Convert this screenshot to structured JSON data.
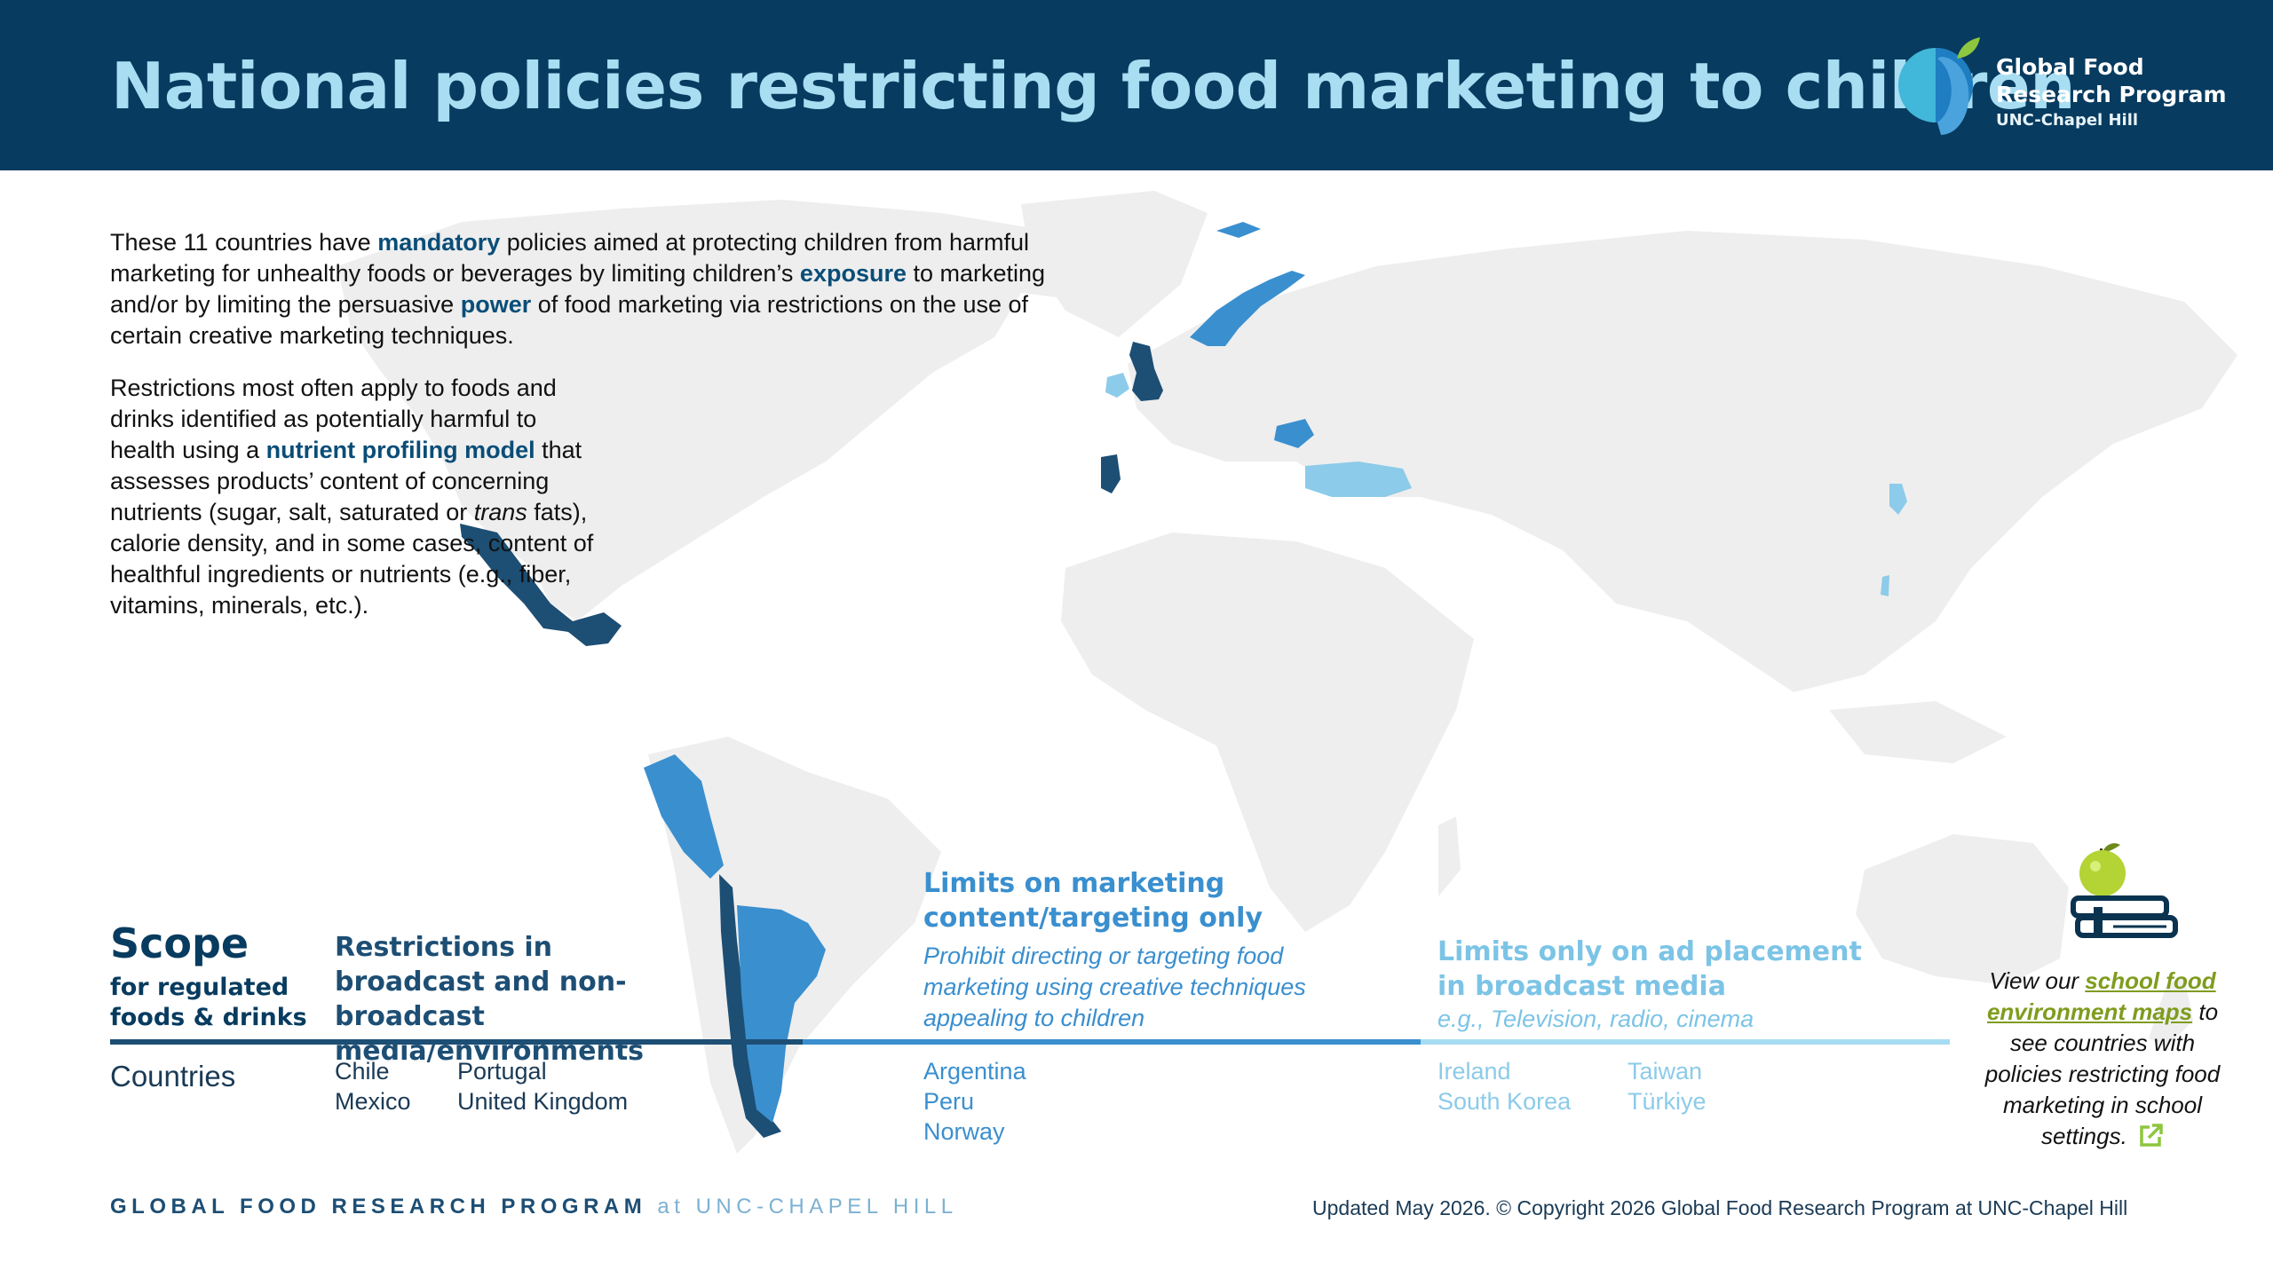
{
  "header": {
    "title": "National policies restricting food marketing to children",
    "logo": {
      "line1": "Global Food",
      "line2": "Research Program",
      "line3": "UNC-Chapel Hill"
    }
  },
  "intro": {
    "p1": [
      {
        "t": "These 11 countries have "
      },
      {
        "t": "mandatory",
        "hl": true
      },
      {
        "t": " policies aimed at protecting children from harmful marketing for unhealthy foods or beverages by limiting children’s "
      },
      {
        "t": "exposure",
        "hl": true
      },
      {
        "t": " to marketing and/or by limiting the persuasive "
      },
      {
        "t": "power",
        "hl": true
      },
      {
        "t": " of food marketing via restrictions on the use of certain creative marketing techniques."
      }
    ],
    "p2": [
      {
        "t": "Restrictions most often apply to foods and drinks identified as potentially harmful to health using a "
      },
      {
        "t": "nutrient profiling model",
        "hl": true
      },
      {
        "t": " that assesses products’ content of concerning nutrients (sugar, salt, saturated or "
      },
      {
        "t": "trans",
        "it": true
      },
      {
        "t": " fats), calorie density, and in some cases, content of healthful ingredients or nutrients (e.g., fiber, vitamins, minerals, etc.)."
      }
    ]
  },
  "scope": {
    "title": "Scope",
    "subtitle": "for regulated foods & drinks",
    "countries_label": "Countries"
  },
  "categories": [
    {
      "title": "Restrictions in broadcast and non-broadcast media/environments",
      "color": "#1d4e74",
      "countries": [
        "Chile",
        "Mexico",
        "Portugal",
        "United Kingdom"
      ]
    },
    {
      "title": "Limits on marketing content/targeting only",
      "description": "Prohibit directing or targeting food marketing using creative techniques appealing to children",
      "color": "#3a8fcf",
      "countries": [
        "Argentina",
        "Peru",
        "Norway"
      ]
    },
    {
      "title": "Limits only on ad placement in broadcast media",
      "description": "e.g., Television, radio, cinema",
      "color": "#8ccbe9",
      "countries": [
        "Ireland",
        "South Korea",
        "Taiwan",
        "Türkiye"
      ]
    }
  ],
  "sidebar": {
    "pre": "View our ",
    "link": "school food environment maps",
    "post": " to see countries with policies restricting food marketing in school settings.",
    "icon": "external-link-icon"
  },
  "footer": {
    "brand_bold": "GLOBAL FOOD RESEARCH PROGRAM",
    "brand_light": " at UNC-CHAPEL HILL",
    "copyright": "Updated May 2026. © Copyright 2026 Global Food Research Program at UNC-Chapel Hill"
  },
  "colors": {
    "header_bg": "#073b5f",
    "title": "#a9ddf2",
    "land": "#eeeeee",
    "category1": "#1d4e74",
    "category2": "#3a8fcf",
    "category3": "#8ccbe9",
    "link": "#7f9c1e"
  }
}
